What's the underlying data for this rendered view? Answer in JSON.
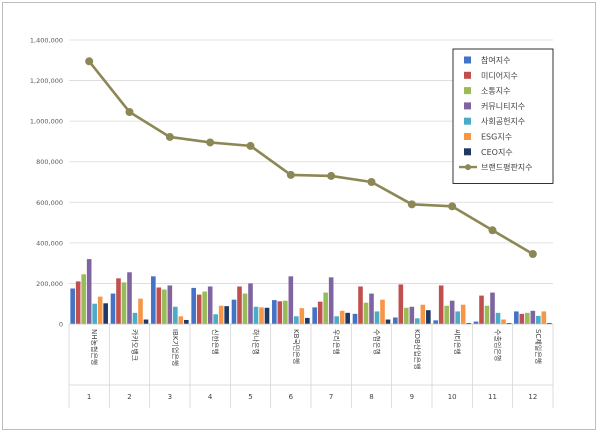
{
  "chart_data": {
    "type": "bar",
    "title": "",
    "xlabel": "",
    "ylabel": "",
    "ylim": [
      0,
      1400000
    ],
    "yticks": [
      "0",
      "200,000",
      "400,000",
      "600,000",
      "800,000",
      "1,000,000",
      "1,200,000",
      "1,400,000"
    ],
    "yticks_values": [
      0,
      200000,
      400000,
      600000,
      800000,
      1000000,
      1200000,
      1400000
    ],
    "grid": true,
    "legend_position": "top-right",
    "categories": [
      "NH농협은행",
      "카카오뱅크",
      "IBK기업은행",
      "신한은행",
      "하나은행",
      "KB국민은행",
      "우리은행",
      "수협은행",
      "KDB산업은행",
      "씨티은행",
      "수출입은행",
      "SC제일은행"
    ],
    "indices": [
      "1",
      "2",
      "3",
      "4",
      "5",
      "6",
      "7",
      "8",
      "9",
      "10",
      "11",
      "12"
    ],
    "series": [
      {
        "name": "참여지수",
        "color": "#4472c4",
        "kind": "bar",
        "values": [
          175000,
          150000,
          235000,
          178000,
          120000,
          118000,
          82000,
          50000,
          32000,
          18000,
          12000,
          62000
        ]
      },
      {
        "name": "미디어지수",
        "color": "#c0504d",
        "kind": "bar",
        "values": [
          210000,
          225000,
          180000,
          145000,
          185000,
          112000,
          110000,
          185000,
          195000,
          190000,
          140000,
          50000
        ]
      },
      {
        "name": "소통지수",
        "color": "#9bbb59",
        "kind": "bar",
        "values": [
          245000,
          205000,
          170000,
          160000,
          150000,
          115000,
          155000,
          105000,
          80000,
          90000,
          90000,
          55000
        ]
      },
      {
        "name": "커뮤니티지수",
        "color": "#8064a2",
        "kind": "bar",
        "values": [
          320000,
          255000,
          190000,
          185000,
          200000,
          235000,
          230000,
          150000,
          85000,
          115000,
          155000,
          65000
        ]
      },
      {
        "name": "사회공헌지수",
        "color": "#4bacc6",
        "kind": "bar",
        "values": [
          100000,
          55000,
          85000,
          48000,
          85000,
          38000,
          38000,
          62000,
          28000,
          62000,
          55000,
          40000
        ]
      },
      {
        "name": "ESG지수",
        "color": "#f79646",
        "kind": "bar",
        "values": [
          135000,
          125000,
          38000,
          90000,
          82000,
          78000,
          65000,
          120000,
          95000,
          95000,
          22000,
          62000
        ]
      },
      {
        "name": "CEO지수",
        "color": "#1f3864",
        "kind": "bar",
        "values": [
          102000,
          22000,
          20000,
          88000,
          80000,
          30000,
          55000,
          22000,
          68000,
          5000,
          5000,
          5000
        ]
      },
      {
        "name": "브랜드평판지수",
        "color": "#8c8856",
        "kind": "line",
        "values": [
          1295000,
          1045000,
          922000,
          895000,
          878000,
          735000,
          730000,
          700000,
          590000,
          580000,
          462000,
          345000
        ]
      }
    ]
  }
}
